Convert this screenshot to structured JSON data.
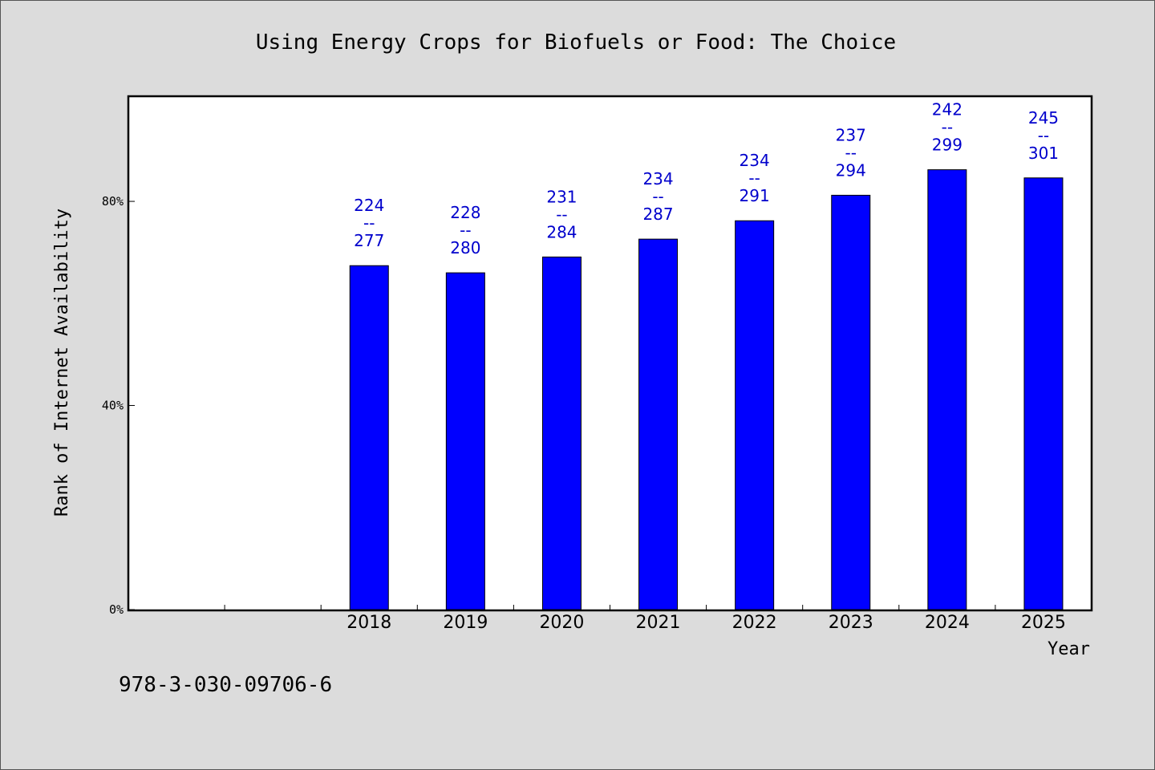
{
  "chart_data": {
    "type": "bar",
    "title": "Using Energy Crops for Biofuels or Food: The Choice",
    "xlabel": "Year",
    "ylabel": "Rank of Internet Availability",
    "categories": [
      "2018",
      "2019",
      "2020",
      "2021",
      "2022",
      "2023",
      "2024",
      "2025"
    ],
    "values": [
      67.4,
      66.0,
      69.1,
      72.6,
      76.2,
      81.2,
      86.2,
      84.6
    ],
    "data_labels": [
      {
        "low": "224",
        "sep": "--",
        "high": "277"
      },
      {
        "low": "228",
        "sep": "--",
        "high": "280"
      },
      {
        "low": "231",
        "sep": "--",
        "high": "284"
      },
      {
        "low": "234",
        "sep": "--",
        "high": "287"
      },
      {
        "low": "234",
        "sep": "--",
        "high": "291"
      },
      {
        "low": "237",
        "sep": "--",
        "high": "294"
      },
      {
        "low": "242",
        "sep": "--",
        "high": "299"
      },
      {
        "low": "245",
        "sep": "--",
        "high": "301"
      }
    ],
    "ylim": [
      0,
      100.6
    ],
    "yticks": [
      0,
      40,
      80
    ],
    "ytick_labels": [
      "0%",
      "40%",
      "80%"
    ],
    "x_slots": 10,
    "x_first_category_slot": 2,
    "grid": false,
    "bar_color": "#0000ff",
    "label_color": "#0000cc"
  },
  "footer": {
    "isbn": "978-3-030-09706-6"
  }
}
